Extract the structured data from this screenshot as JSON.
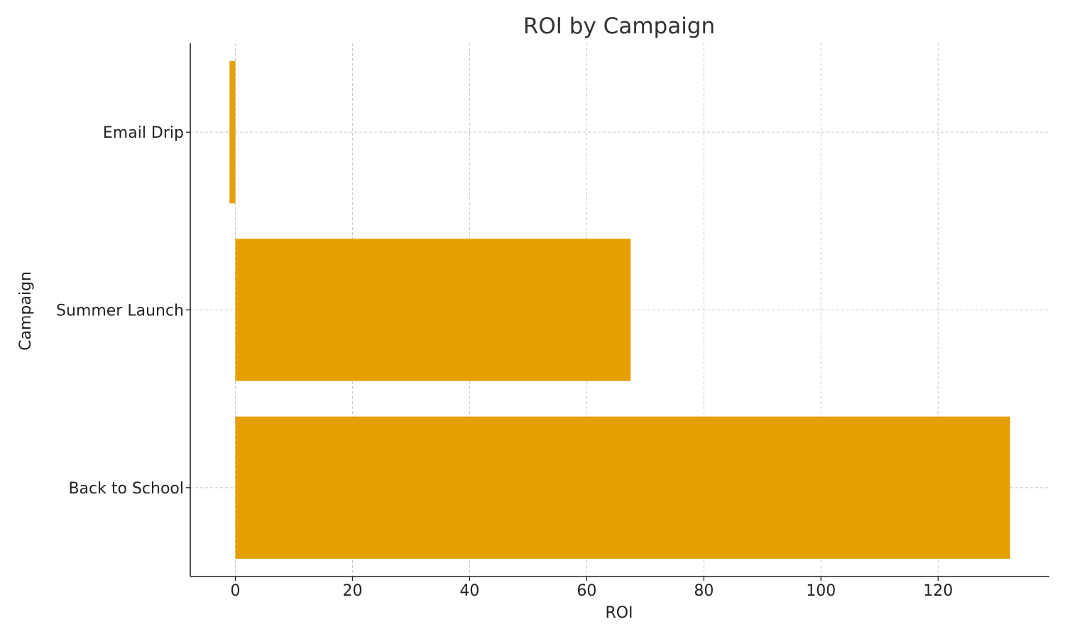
{
  "chart_data": {
    "type": "bar",
    "orientation": "horizontal",
    "title": "ROI by Campaign",
    "xlabel": "ROI",
    "ylabel": "Campaign",
    "categories": [
      "Back to School",
      "Summer Launch",
      "Email Drip"
    ],
    "values": [
      132.3,
      67.5,
      -1.0
    ],
    "xlim": [
      -7.7,
      139.0
    ],
    "xticks": [
      0,
      20,
      40,
      60,
      80,
      100,
      120
    ],
    "grid": true,
    "bar_color": "#E5A000"
  }
}
